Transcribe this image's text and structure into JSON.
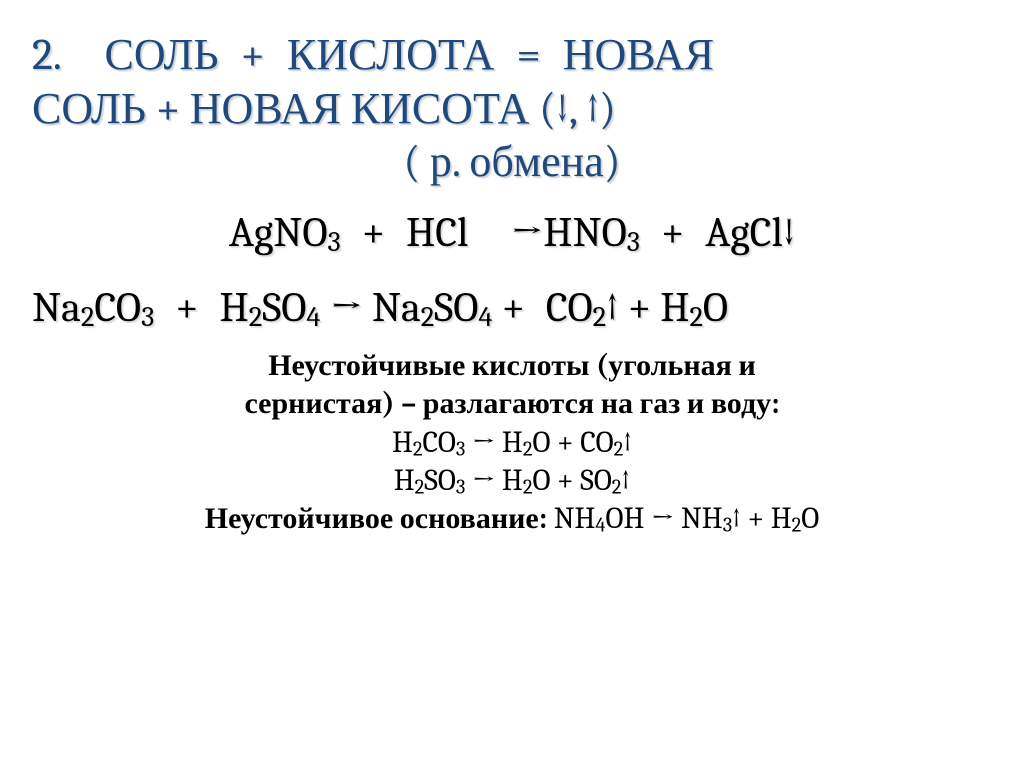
{
  "colors": {
    "title": "#1f497d",
    "body": "#000000",
    "background": "#ffffff",
    "shadow1": "#cfd3d7",
    "shadow2": "#d8dbde"
  },
  "typography": {
    "title_fontsize": 44,
    "equation_fontsize": 42,
    "note_fontsize": 30,
    "font_family": "Cambria, Georgia, Times New Roman, serif"
  },
  "title": {
    "num": "2.",
    "line1_html": "2. СОЛЬ + КИСЛОТА = НОВАЯ",
    "line2_html": "СОЛЬ + НОВАЯ КИСОТА (↓, ↑)",
    "line3_html": "( р. обмена)"
  },
  "equations": {
    "eq1_html": "AgNO<sub>3</sub> + HCl  →HNO<sub>3</sub> + AgCl↓",
    "eq2_html": "Na<sub>2</sub>CO<sub>3</sub> + H<sub>2</sub>SO<sub>4</sub> → Na<sub>2</sub>SO<sub>4</sub> + CO<sub>2</sub>↑ + H<sub>2</sub>O"
  },
  "notes": {
    "l1_html": "<span class=\"bold\">Неустойчивые кислоты (угольная и</span>",
    "l2_html": "<span class=\"bold\">сернистая) – разлагаются на газ и воду:</span>",
    "l3_html": "H<sub>2</sub>CO<sub>3</sub> → H<sub>2</sub>O + CO<sub>2</sub>↑",
    "l4_html": "H<sub>2</sub>SO<sub>3</sub> → H<sub>2</sub>O + SO<sub>2</sub>↑",
    "l5_html": "<span class=\"bold\">Неустойчивое основание:</span> NH<sub>4</sub>OH → NH<sub>3</sub>↑ + H<sub>2</sub>O"
  }
}
